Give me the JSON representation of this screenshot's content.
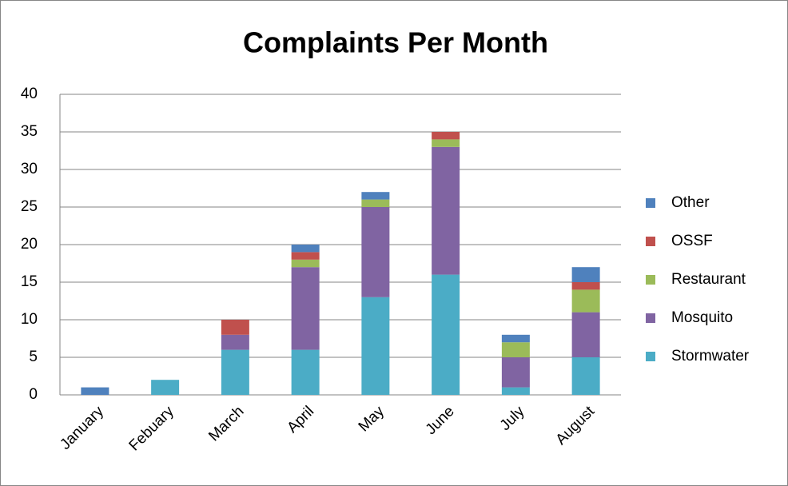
{
  "chart_data": {
    "type": "stacked_bar",
    "title": "Complaints Per Month",
    "categories": [
      "January",
      "Febuary",
      "March",
      "April",
      "May",
      "June",
      "July",
      "August"
    ],
    "series": [
      {
        "name": "Stormwater",
        "color": "#4bacc6",
        "values": [
          0,
          2,
          6,
          6,
          13,
          16,
          1,
          5
        ]
      },
      {
        "name": "Mosquito",
        "color": "#8064a2",
        "values": [
          0,
          0,
          2,
          11,
          12,
          17,
          4,
          6
        ]
      },
      {
        "name": "Restaurant",
        "color": "#9bbb59",
        "values": [
          0,
          0,
          0,
          1,
          1,
          1,
          2,
          3
        ]
      },
      {
        "name": "OSSF",
        "color": "#c0504d",
        "values": [
          0,
          0,
          2,
          1,
          0,
          1,
          0,
          1
        ]
      },
      {
        "name": "Other",
        "color": "#4f81bd",
        "values": [
          1,
          0,
          0,
          1,
          1,
          0,
          1,
          2
        ]
      }
    ],
    "ylim": [
      0,
      40
    ],
    "yticks": [
      0,
      5,
      10,
      15,
      20,
      25,
      30,
      35,
      40
    ],
    "grid": true,
    "legend": "right"
  }
}
